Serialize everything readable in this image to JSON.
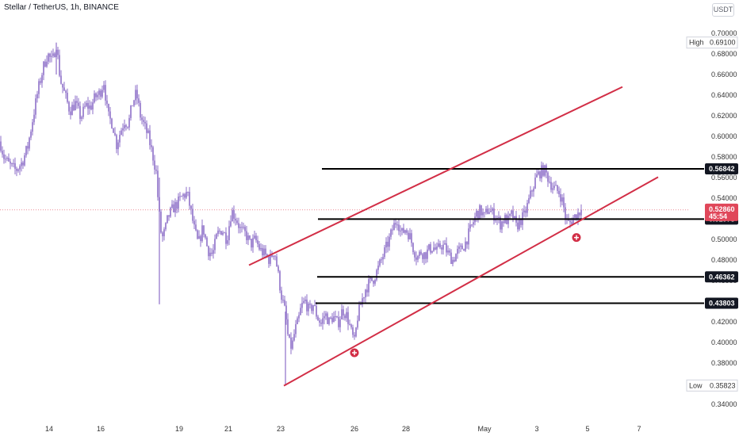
{
  "header": {
    "title": "Stellar / TetherUS, 1h, BINANCE",
    "currency": "USDT"
  },
  "colors": {
    "candle": "#8e6fc8",
    "channel": "#d22e46",
    "level": "#000000",
    "marker": "#d22e46",
    "last_price_bg": "#e0475a"
  },
  "chart_data": {
    "type": "candlestick",
    "title": "Stellar / TetherUS, 1h, BINANCE",
    "y_axis": {
      "min": 0.33,
      "max": 0.71,
      "ticks": [
        "0.70000",
        "0.68000",
        "0.66000",
        "0.64000",
        "0.62000",
        "0.60000",
        "0.58000",
        "0.56000",
        "0.54000",
        "0.52000",
        "0.50000",
        "0.48000",
        "0.46000",
        "0.44000",
        "0.42000",
        "0.40000",
        "0.38000",
        "0.36000",
        "0.34000"
      ]
    },
    "x_axis": {
      "ticks": [
        "14",
        "16",
        "19",
        "21",
        "23",
        "26",
        "28",
        "May",
        "3",
        "5",
        "7"
      ]
    },
    "price_path": [
      [
        0,
        0.595
      ],
      [
        5,
        0.58
      ],
      [
        12,
        0.572
      ],
      [
        20,
        0.567
      ],
      [
        28,
        0.575
      ],
      [
        35,
        0.59
      ],
      [
        42,
        0.62
      ],
      [
        48,
        0.645
      ],
      [
        55,
        0.668
      ],
      [
        60,
        0.68
      ],
      [
        66,
        0.672
      ],
      [
        71,
        0.69
      ],
      [
        76,
        0.655
      ],
      [
        82,
        0.64
      ],
      [
        88,
        0.625
      ],
      [
        95,
        0.632
      ],
      [
        102,
        0.618
      ],
      [
        108,
        0.63
      ],
      [
        114,
        0.628
      ],
      [
        120,
        0.638
      ],
      [
        126,
        0.642
      ],
      [
        131,
        0.653
      ],
      [
        136,
        0.62
      ],
      [
        142,
        0.612
      ],
      [
        147,
        0.592
      ],
      [
        152,
        0.605
      ],
      [
        157,
        0.615
      ],
      [
        162,
        0.612
      ],
      [
        167,
        0.632
      ],
      [
        172,
        0.642
      ],
      [
        177,
        0.62
      ],
      [
        182,
        0.61
      ],
      [
        187,
        0.6
      ],
      [
        193,
        0.58
      ],
      [
        197,
        0.565
      ],
      [
        200,
        0.53
      ],
      [
        204,
        0.5
      ],
      [
        208,
        0.508
      ],
      [
        212,
        0.522
      ],
      [
        218,
        0.53
      ],
      [
        224,
        0.535
      ],
      [
        230,
        0.542
      ],
      [
        236,
        0.545
      ],
      [
        240,
        0.53
      ],
      [
        245,
        0.51
      ],
      [
        250,
        0.495
      ],
      [
        256,
        0.512
      ],
      [
        262,
        0.49
      ],
      [
        268,
        0.485
      ],
      [
        274,
        0.505
      ],
      [
        280,
        0.51
      ],
      [
        286,
        0.5
      ],
      [
        292,
        0.528
      ],
      [
        298,
        0.52
      ],
      [
        304,
        0.508
      ],
      [
        310,
        0.505
      ],
      [
        316,
        0.495
      ],
      [
        322,
        0.5
      ],
      [
        328,
        0.49
      ],
      [
        334,
        0.485
      ],
      [
        340,
        0.48
      ],
      [
        346,
        0.49
      ],
      [
        350,
        0.47
      ],
      [
        355,
        0.445
      ],
      [
        360,
        0.428
      ],
      [
        364,
        0.4
      ],
      [
        368,
        0.395
      ],
      [
        372,
        0.412
      ],
      [
        376,
        0.42
      ],
      [
        380,
        0.435
      ],
      [
        385,
        0.44
      ],
      [
        390,
        0.43
      ],
      [
        395,
        0.437
      ],
      [
        400,
        0.425
      ],
      [
        405,
        0.418
      ],
      [
        410,
        0.428
      ],
      [
        415,
        0.42
      ],
      [
        420,
        0.425
      ],
      [
        426,
        0.418
      ],
      [
        432,
        0.432
      ],
      [
        438,
        0.425
      ],
      [
        443,
        0.41
      ],
      [
        447,
        0.4
      ],
      [
        451,
        0.425
      ],
      [
        456,
        0.44
      ],
      [
        461,
        0.452
      ],
      [
        466,
        0.458
      ],
      [
        471,
        0.462
      ],
      [
        476,
        0.47
      ],
      [
        481,
        0.48
      ],
      [
        486,
        0.49
      ],
      [
        491,
        0.5
      ],
      [
        496,
        0.512
      ],
      [
        501,
        0.52
      ],
      [
        506,
        0.505
      ],
      [
        511,
        0.51
      ],
      [
        516,
        0.505
      ],
      [
        521,
        0.492
      ],
      [
        526,
        0.482
      ],
      [
        531,
        0.488
      ],
      [
        536,
        0.485
      ],
      [
        541,
        0.49
      ],
      [
        546,
        0.493
      ],
      [
        551,
        0.488
      ],
      [
        556,
        0.495
      ],
      [
        561,
        0.492
      ],
      [
        566,
        0.485
      ],
      [
        571,
        0.48
      ],
      [
        576,
        0.487
      ],
      [
        581,
        0.49
      ],
      [
        586,
        0.495
      ],
      [
        591,
        0.505
      ],
      [
        596,
        0.515
      ],
      [
        601,
        0.525
      ],
      [
        606,
        0.528
      ],
      [
        611,
        0.522
      ],
      [
        616,
        0.53
      ],
      [
        621,
        0.525
      ],
      [
        626,
        0.522
      ],
      [
        631,
        0.515
      ],
      [
        636,
        0.52
      ],
      [
        641,
        0.518
      ],
      [
        646,
        0.525
      ],
      [
        651,
        0.512
      ],
      [
        656,
        0.518
      ],
      [
        661,
        0.523
      ],
      [
        666,
        0.535
      ],
      [
        671,
        0.548
      ],
      [
        676,
        0.56
      ],
      [
        681,
        0.565
      ],
      [
        686,
        0.568
      ],
      [
        691,
        0.56
      ],
      [
        696,
        0.552
      ],
      [
        701,
        0.548
      ],
      [
        706,
        0.545
      ],
      [
        710,
        0.535
      ],
      [
        714,
        0.518
      ],
      [
        718,
        0.515
      ],
      [
        722,
        0.52
      ],
      [
        726,
        0.523
      ],
      [
        730,
        0.526
      ],
      [
        733,
        0.5286
      ]
    ],
    "extremes": {
      "high": 0.691,
      "low": 0.35823
    },
    "last_price": 0.5286,
    "countdown": "45:54",
    "horizontal_levels": [
      0.56842,
      0.51973,
      0.46362,
      0.43803
    ],
    "channel": {
      "upper": {
        "from": [
          314,
          0.475
        ],
        "to": [
          785,
          0.648
        ]
      },
      "lower": {
        "from": [
          358,
          0.358
        ],
        "to": [
          830,
          0.5605
        ]
      }
    },
    "touch_markers": [
      [
        447,
        0.39
      ],
      [
        727,
        0.5018
      ]
    ],
    "labels": {
      "high_label": "High",
      "high_value": "0.69100",
      "low_label": "Low",
      "low_value": "0.35823",
      "last_value": "0.52860"
    }
  }
}
